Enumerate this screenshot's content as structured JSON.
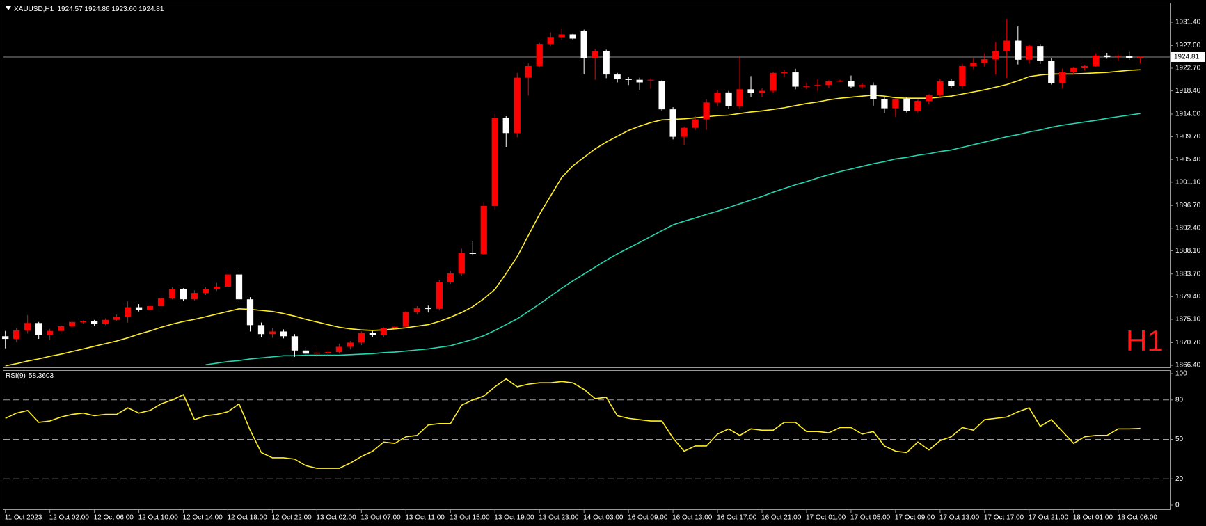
{
  "chart_data": {
    "type": "candlestick",
    "title": "XAUUSD,H1",
    "subtitle": "1924.57 1924.86 1923.60 1924.81",
    "annotation": "H1",
    "categories": [
      "11 Oct 2023",
      null,
      null,
      null,
      "12 Oct 02:00",
      null,
      null,
      null,
      "12 Oct 06:00",
      null,
      null,
      null,
      "12 Oct 10:00",
      null,
      null,
      null,
      "12 Oct 14:00",
      null,
      null,
      null,
      "12 Oct 18:00",
      null,
      null,
      null,
      "12 Oct 22:00",
      null,
      null,
      null,
      "13 Oct 02:00",
      null,
      null,
      null,
      "13 Oct 07:00",
      null,
      null,
      null,
      "13 Oct 11:00",
      null,
      null,
      null,
      "13 Oct 15:00",
      null,
      null,
      null,
      "13 Oct 19:00",
      null,
      null,
      null,
      "13 Oct 23:00",
      null,
      null,
      null,
      "14 Oct 03:00",
      null,
      null,
      null,
      "16 Oct 09:00",
      null,
      null,
      null,
      "16 Oct 13:00",
      null,
      null,
      null,
      "16 Oct 17:00",
      null,
      null,
      null,
      "16 Oct 21:00",
      null,
      null,
      null,
      "17 Oct 01:00",
      null,
      null,
      null,
      "17 Oct 05:00",
      null,
      null,
      null,
      "17 Oct 09:00",
      null,
      null,
      null,
      "17 Oct 13:00",
      null,
      null,
      null,
      "17 Oct 17:00",
      null,
      null,
      null,
      "17 Oct 21:00",
      null,
      null,
      null,
      "18 Oct 01:00",
      null,
      null,
      null,
      "18 Oct 06:00",
      null,
      null
    ],
    "open": [
      1871.9,
      1871.4,
      1873.0,
      1874.4,
      1872.1,
      1872.9,
      1873.8,
      1874.6,
      1874.7,
      1874.3,
      1875.0,
      1875.6,
      1877.4,
      1876.9,
      1877.6,
      1879.1,
      1880.8,
      1878.9,
      1880.1,
      1880.8,
      1881.3,
      1883.6,
      1878.9,
      1874.0,
      1872.3,
      1872.8,
      1871.9,
      1869.2,
      1868.6,
      1868.8,
      1868.9,
      1869.9,
      1870.7,
      1872.5,
      1872.1,
      1873.4,
      1873.7,
      1876.5,
      1877.2,
      1877.1,
      1882.2,
      1883.8,
      1887.7,
      1887.5,
      1896.6,
      1913.3,
      1910.4,
      1920.9,
      1923.1,
      1927.3,
      1928.6,
      1929.1,
      1929.8,
      1924.6,
      1925.9,
      1921.5,
      1920.6,
      1920.5,
      1920.4,
      1920.2,
      1914.9,
      1909.7,
      1911.4,
      1913.0,
      1916.2,
      1918.1,
      1915.5,
      1918.7,
      1918.0,
      1918.4,
      1921.8,
      1921.9,
      1919.2,
      1919.3,
      1919.5,
      1920.2,
      1920.3,
      1919.2,
      1919.5,
      1916.8,
      1915.1,
      1916.8,
      1914.6,
      1916.5,
      1917.6,
      1920.2,
      1919.3,
      1923.1,
      1923.7,
      1924.4,
      1926.0,
      1927.9,
      1924.3,
      1926.9,
      1924.1,
      1919.9,
      1921.9,
      1922.7,
      1923.1,
      1925.1,
      1924.8,
      1925.0,
      1924.57
    ],
    "high": [
      1872.9,
      1873.4,
      1875.9,
      1874.6,
      1873.3,
      1874.0,
      1874.8,
      1874.9,
      1875.0,
      1875.3,
      1876.0,
      1878.5,
      1878.0,
      1877.9,
      1879.4,
      1881.2,
      1881.0,
      1880.6,
      1881.2,
      1882.0,
      1884.5,
      1884.9,
      1879.3,
      1874.5,
      1873.4,
      1873.2,
      1872.3,
      1869.8,
      1870.0,
      1869.2,
      1870.5,
      1871.0,
      1872.8,
      1872.9,
      1873.6,
      1873.9,
      1876.7,
      1877.6,
      1877.7,
      1882.5,
      1884.3,
      1888.5,
      1889.9,
      1897.3,
      1914.0,
      1913.6,
      1921.8,
      1923.6,
      1927.5,
      1929.5,
      1930.2,
      1929.2,
      1930.0,
      1926.3,
      1926.2,
      1921.8,
      1921.0,
      1920.9,
      1920.8,
      1920.4,
      1915.3,
      1911.6,
      1913.6,
      1916.8,
      1918.6,
      1918.4,
      1924.8,
      1921.2,
      1918.9,
      1922.0,
      1922.4,
      1922.6,
      1920.0,
      1920.6,
      1920.4,
      1920.5,
      1921.3,
      1919.9,
      1920.0,
      1917.3,
      1916.9,
      1917.2,
      1916.8,
      1917.8,
      1920.7,
      1920.6,
      1923.5,
      1924.6,
      1925.5,
      1927.6,
      1932.0,
      1930.6,
      1927.2,
      1927.3,
      1924.6,
      1922.6,
      1922.9,
      1923.3,
      1925.5,
      1925.6,
      1925.3,
      1925.8,
      1924.86
    ],
    "low": [
      1869.6,
      1870.8,
      1872.4,
      1871.4,
      1871.2,
      1872.3,
      1873.5,
      1874.3,
      1873.8,
      1874.0,
      1874.8,
      1874.5,
      1876.6,
      1876.5,
      1877.0,
      1878.9,
      1878.6,
      1878.7,
      1879.7,
      1880.5,
      1880.8,
      1878.0,
      1872.8,
      1871.8,
      1871.6,
      1871.5,
      1868.0,
      1868.2,
      1868.0,
      1868.2,
      1868.6,
      1869.4,
      1870.2,
      1871.8,
      1871.7,
      1873.1,
      1873.5,
      1876.0,
      1876.4,
      1876.8,
      1881.8,
      1883.4,
      1887.2,
      1887.3,
      1895.8,
      1907.8,
      1909.6,
      1917.5,
      1922.8,
      1926.9,
      1928.1,
      1928.0,
      1921.5,
      1920.5,
      1920.8,
      1920.0,
      1919.5,
      1918.5,
      1918.8,
      1914.6,
      1909.2,
      1908.2,
      1911.0,
      1911.0,
      1915.5,
      1915.0,
      1915.0,
      1917.3,
      1917.2,
      1918.0,
      1921.0,
      1918.7,
      1918.7,
      1918.4,
      1919.0,
      1920.1,
      1918.9,
      1918.8,
      1915.6,
      1914.2,
      1913.5,
      1914.3,
      1914.3,
      1915.8,
      1917.2,
      1919.0,
      1918.9,
      1922.6,
      1923.0,
      1921.5,
      1920.8,
      1923.4,
      1923.6,
      1923.5,
      1919.6,
      1918.9,
      1921.5,
      1922.3,
      1922.9,
      1924.5,
      1924.2,
      1924.3,
      1923.6
    ],
    "close": [
      1871.4,
      1873.0,
      1874.4,
      1872.1,
      1872.9,
      1873.8,
      1874.6,
      1874.7,
      1874.3,
      1875.0,
      1875.6,
      1877.4,
      1876.9,
      1877.6,
      1879.1,
      1880.8,
      1878.9,
      1880.1,
      1880.8,
      1881.3,
      1883.6,
      1878.9,
      1874.0,
      1872.3,
      1872.8,
      1871.9,
      1869.2,
      1868.6,
      1868.8,
      1868.9,
      1869.9,
      1870.7,
      1872.5,
      1872.1,
      1873.4,
      1873.7,
      1876.5,
      1877.2,
      1877.1,
      1882.2,
      1883.8,
      1887.7,
      1887.5,
      1896.6,
      1913.3,
      1910.4,
      1920.9,
      1923.1,
      1927.3,
      1928.6,
      1929.1,
      1928.3,
      1924.6,
      1925.9,
      1921.5,
      1920.6,
      1920.5,
      1920.0,
      1920.5,
      1914.9,
      1909.7,
      1911.4,
      1913.0,
      1916.2,
      1918.1,
      1915.5,
      1918.7,
      1918.0,
      1918.4,
      1921.8,
      1921.9,
      1919.2,
      1919.3,
      1919.5,
      1920.2,
      1920.3,
      1919.2,
      1919.5,
      1916.8,
      1915.1,
      1916.8,
      1914.6,
      1916.5,
      1917.6,
      1920.2,
      1919.3,
      1923.1,
      1923.7,
      1924.4,
      1926.0,
      1927.9,
      1924.3,
      1926.9,
      1924.1,
      1919.9,
      1921.9,
      1922.7,
      1923.1,
      1925.1,
      1924.8,
      1925.0,
      1924.57,
      1924.81
    ],
    "up_color": "#ff0000",
    "down_color": "#ffffff",
    "overlays": [
      {
        "color": "#ffee22",
        "values": [
          1866.3,
          1866.7,
          1867.2,
          1867.6,
          1868.1,
          1868.5,
          1869.0,
          1869.5,
          1870.0,
          1870.5,
          1871.0,
          1871.6,
          1872.3,
          1872.9,
          1873.6,
          1874.2,
          1874.7,
          1875.1,
          1875.6,
          1876.1,
          1876.6,
          1877.1,
          1877.0,
          1876.8,
          1876.6,
          1876.2,
          1875.7,
          1875.1,
          1874.6,
          1874.1,
          1873.6,
          1873.3,
          1873.1,
          1873.0,
          1873.1,
          1873.3,
          1873.5,
          1873.8,
          1874.1,
          1874.7,
          1875.5,
          1876.4,
          1877.5,
          1879.0,
          1880.8,
          1883.8,
          1887.0,
          1891.0,
          1895.0,
          1898.5,
          1902.0,
          1904.2,
          1905.8,
          1907.4,
          1908.7,
          1909.8,
          1910.9,
          1911.7,
          1912.4,
          1912.9,
          1913.0,
          1913.1,
          1913.3,
          1913.5,
          1913.7,
          1913.8,
          1914.1,
          1914.4,
          1914.6,
          1914.9,
          1915.2,
          1915.6,
          1916.0,
          1916.3,
          1916.7,
          1917.0,
          1917.2,
          1917.4,
          1917.6,
          1917.4,
          1917.1,
          1917.0,
          1917.0,
          1917.0,
          1917.2,
          1917.4,
          1917.8,
          1918.2,
          1918.6,
          1919.1,
          1919.6,
          1920.3,
          1921.1,
          1921.4,
          1921.6,
          1921.6,
          1921.6,
          1921.7,
          1921.8,
          1921.9,
          1922.1,
          1922.3,
          1922.4
        ]
      },
      {
        "color": "#22d8b0",
        "values": [
          null,
          null,
          null,
          null,
          null,
          null,
          null,
          null,
          null,
          null,
          null,
          null,
          null,
          null,
          null,
          null,
          null,
          null,
          1866.5,
          1866.8,
          1867.1,
          1867.3,
          1867.6,
          1867.8,
          1868.0,
          1868.2,
          1868.2,
          1868.3,
          1868.3,
          1868.3,
          1868.3,
          1868.4,
          1868.5,
          1868.6,
          1868.8,
          1868.9,
          1869.1,
          1869.3,
          1869.5,
          1869.8,
          1870.1,
          1870.7,
          1871.3,
          1872.0,
          1873.0,
          1874.1,
          1875.2,
          1876.6,
          1878.0,
          1879.5,
          1881.0,
          1882.4,
          1883.7,
          1885.0,
          1886.3,
          1887.5,
          1888.6,
          1889.7,
          1890.8,
          1891.9,
          1893.0,
          1893.7,
          1894.3,
          1895.0,
          1895.6,
          1896.3,
          1897.0,
          1897.7,
          1898.4,
          1899.2,
          1899.9,
          1900.6,
          1901.2,
          1901.9,
          1902.5,
          1903.1,
          1903.6,
          1904.1,
          1904.6,
          1905.0,
          1905.5,
          1905.8,
          1906.2,
          1906.5,
          1906.9,
          1907.2,
          1907.7,
          1908.2,
          1908.7,
          1909.2,
          1909.7,
          1910.1,
          1910.6,
          1911.0,
          1911.5,
          1911.9,
          1912.2,
          1912.5,
          1912.8,
          1913.2,
          1913.5,
          1913.8,
          1914.1
        ]
      }
    ],
    "ylim": [
      1866.4,
      1931.4
    ],
    "yticks": [
      {
        "value": 1931.4,
        "label": "1931.40"
      },
      {
        "value": 1927,
        "label": "1927.00"
      },
      {
        "value": 1922.7,
        "label": "1922.70"
      },
      {
        "value": 1918.4,
        "label": "1918.40"
      },
      {
        "value": 1914,
        "label": "1914.00"
      },
      {
        "value": 1909.7,
        "label": "1909.70"
      },
      {
        "value": 1905.4,
        "label": "1905.40"
      },
      {
        "value": 1901.1,
        "label": "1901.10"
      },
      {
        "value": 1896.7,
        "label": "1896.70"
      },
      {
        "value": 1892.4,
        "label": "1892.40"
      },
      {
        "value": 1888.1,
        "label": "1888.10"
      },
      {
        "value": 1883.7,
        "label": "1883.70"
      },
      {
        "value": 1879.4,
        "label": "1879.40"
      },
      {
        "value": 1875.1,
        "label": "1875.10"
      },
      {
        "value": 1870.7,
        "label": "1870.70"
      },
      {
        "value": 1866.4,
        "label": "1866.40"
      }
    ],
    "last_price": 1924.81,
    "indicator": {
      "type": "line",
      "title": "RSI(9)",
      "color": "#ffee22",
      "values": [
        66,
        70,
        72,
        63,
        64,
        67,
        69,
        70,
        68,
        69,
        69,
        74,
        70,
        72,
        77,
        80,
        84,
        65,
        68,
        69,
        71,
        77,
        57,
        40,
        36,
        36,
        35,
        30,
        28,
        28,
        28,
        32,
        37,
        41,
        48,
        47,
        52,
        53,
        61,
        62,
        62,
        76,
        80,
        83,
        90,
        96,
        90,
        92,
        93,
        93,
        94,
        93,
        88,
        81,
        82,
        68,
        66,
        65,
        64,
        64,
        51,
        41,
        45,
        45,
        54,
        58,
        53,
        58,
        57,
        57,
        63,
        63,
        56,
        56,
        55,
        59,
        59,
        54,
        56,
        45,
        41,
        40,
        48,
        42,
        49,
        52,
        59,
        57,
        65,
        66,
        67,
        71,
        74,
        60,
        65,
        56,
        47,
        52,
        53,
        53,
        58,
        58,
        58.3603
      ],
      "ylim": [
        0,
        100
      ],
      "yticks": [
        100,
        80,
        50,
        20,
        0
      ],
      "levels": [
        80,
        50,
        20
      ]
    }
  }
}
